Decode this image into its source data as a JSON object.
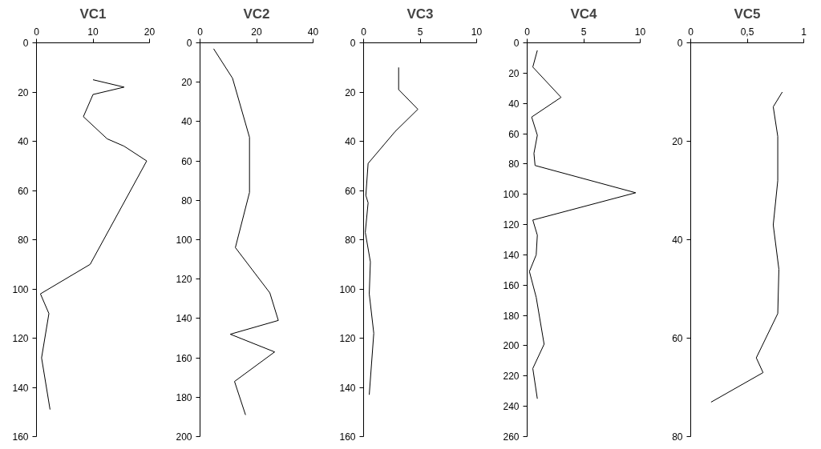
{
  "chart_data": [
    {
      "type": "line",
      "title": "VC1",
      "xlim": [
        0,
        20
      ],
      "xticks": [
        0,
        10,
        20
      ],
      "ylim": [
        160,
        0
      ],
      "yticks": [
        0,
        20,
        40,
        60,
        80,
        100,
        120,
        140,
        160
      ],
      "series": [
        {
          "color": "#000000",
          "x": [
            10,
            15.5,
            10,
            8.3,
            12.5,
            15.5,
            19.5,
            9.5,
            0.7,
            2.2,
            0.9,
            2.4
          ],
          "values": [
            15,
            18,
            21,
            30,
            39,
            42,
            48,
            90,
            102,
            110,
            128,
            149
          ]
        }
      ]
    },
    {
      "type": "line",
      "title": "VC2",
      "xlim": [
        0,
        40
      ],
      "xticks": [
        0,
        20,
        40
      ],
      "ylim": [
        200,
        0
      ],
      "yticks": [
        0,
        20,
        40,
        60,
        80,
        100,
        120,
        140,
        160,
        180,
        200
      ],
      "series": [
        {
          "color": "#000000",
          "x": [
            4.8,
            11.5,
            17.5,
            17.5,
            12.5,
            24.7,
            27.7,
            10.7,
            26.4,
            12.2,
            16.1
          ],
          "values": [
            3,
            18,
            48,
            76,
            104,
            127,
            141,
            148,
            157,
            172,
            189
          ]
        }
      ]
    },
    {
      "type": "line",
      "title": "VC3",
      "xlim": [
        0,
        10
      ],
      "xticks": [
        0,
        5,
        10
      ],
      "ylim": [
        160,
        0
      ],
      "yticks": [
        0,
        20,
        40,
        60,
        80,
        100,
        120,
        140,
        160
      ],
      "series": [
        {
          "color": "#000000",
          "x": [
            3.1,
            3.1,
            4.8,
            2.8,
            0.4,
            0.2,
            0.4,
            0.15,
            0.6,
            0.5,
            0.9,
            0.5
          ],
          "values": [
            10,
            19,
            27,
            36,
            49,
            62,
            65,
            77,
            89,
            102,
            118,
            143
          ]
        }
      ]
    },
    {
      "type": "line",
      "title": "VC4",
      "xlim": [
        0,
        10
      ],
      "xticks": [
        0,
        5,
        10
      ],
      "ylim": [
        260,
        0
      ],
      "yticks": [
        0,
        20,
        40,
        60,
        80,
        100,
        120,
        140,
        160,
        180,
        200,
        220,
        240,
        260
      ],
      "series": [
        {
          "color": "#000000",
          "x": [
            0.9,
            0.5,
            3.0,
            0.4,
            0.9,
            0.6,
            0.7,
            9.6,
            0.5,
            0.9,
            0.8,
            0.2,
            0.8,
            1.5,
            0.5,
            0.9
          ],
          "values": [
            5,
            16,
            36,
            49,
            61,
            73,
            81,
            99,
            117,
            127,
            140,
            151,
            168,
            199,
            215,
            235
          ]
        }
      ]
    },
    {
      "type": "line",
      "title": "VC5",
      "xlim": [
        0,
        1
      ],
      "xticks": [
        0,
        {
          "value": 0.5,
          "label": "0,5"
        },
        1
      ],
      "ylim": [
        80,
        0
      ],
      "yticks": [
        0,
        20,
        40,
        60,
        80
      ],
      "series": [
        {
          "color": "#000000",
          "x": [
            0.81,
            0.73,
            0.77,
            0.77,
            0.73,
            0.78,
            0.77,
            0.58,
            0.64,
            0.18
          ],
          "values": [
            10,
            13,
            19,
            28,
            37,
            46,
            55,
            64,
            67,
            73
          ]
        }
      ]
    }
  ]
}
